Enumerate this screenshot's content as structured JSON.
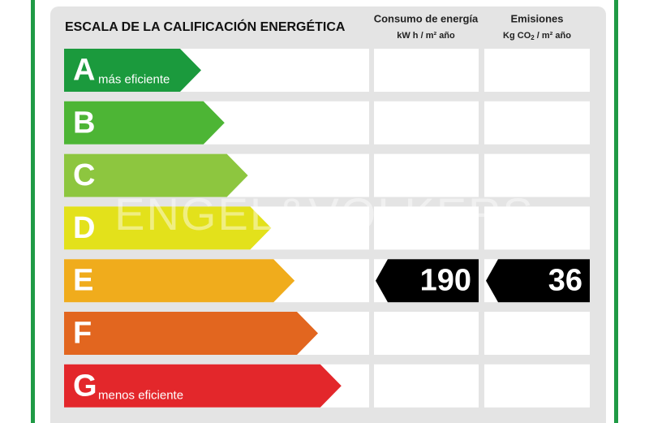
{
  "title": "ESCALA DE LA CALIFICACIÓN ENERGÉTICA",
  "columns": [
    {
      "title": "Consumo de energía",
      "unit": [
        "kW h / m² año"
      ]
    },
    {
      "title": "Emisiones",
      "unit": [
        "Kg CO",
        "2",
        " / m² año"
      ]
    }
  ],
  "ratings": [
    {
      "letter": "A",
      "note": "más eficiente",
      "color": "#1b9a3d"
    },
    {
      "letter": "B",
      "note": null,
      "color": "#4db535"
    },
    {
      "letter": "C",
      "note": null,
      "color": "#8dc63f"
    },
    {
      "letter": "D",
      "note": null,
      "color": "#e3e11b"
    },
    {
      "letter": "E",
      "note": null,
      "color": "#f0ac1c"
    },
    {
      "letter": "F",
      "note": null,
      "color": "#e2661f"
    },
    {
      "letter": "G",
      "note": "menos eficiente",
      "color": "#e3272b"
    }
  ],
  "current_rating": "E",
  "values": [
    190,
    36
  ],
  "watermark": "ENGEL&VÖLKERS"
}
